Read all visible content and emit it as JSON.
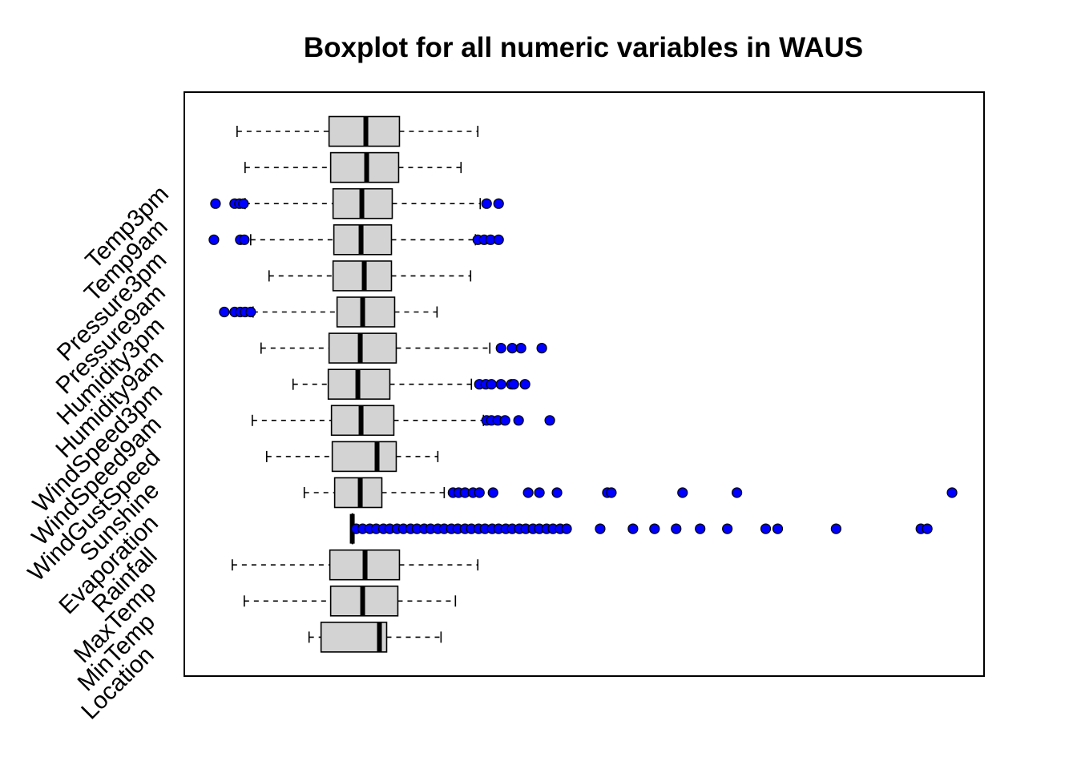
{
  "chart_data": {
    "type": "boxplot",
    "orientation": "horizontal",
    "title": "Boxplot for all numeric variables in WAUS",
    "xlabel": "",
    "ylabel": "",
    "xlim": [
      0,
      100
    ],
    "x_axis_visible": false,
    "grid": false,
    "legend": "none",
    "box_color": "#d3d3d3",
    "outlier_color": "#0000ff",
    "categories_top_to_bottom": [
      "Temp3pm",
      "Temp9am",
      "Pressure3pm",
      "Pressure9am",
      "Humidity3pm",
      "Humidity9am",
      "WindSpeed3pm",
      "WindSpeed9am",
      "WindGustSpeed",
      "Sunshine",
      "Evaporation",
      "Rainfall",
      "MaxTemp",
      "MinTemp",
      "Location"
    ],
    "boxes": [
      {
        "name": "Temp3pm",
        "whisker_low": 6.6,
        "q1": 18.1,
        "median": 22.7,
        "q3": 26.9,
        "whisker_high": 36.7,
        "outliers": []
      },
      {
        "name": "Temp9am",
        "whisker_low": 7.6,
        "q1": 18.3,
        "median": 22.8,
        "q3": 26.8,
        "whisker_high": 34.6,
        "outliers": []
      },
      {
        "name": "Pressure3pm",
        "whisker_low": 7.6,
        "q1": 18.6,
        "median": 22.2,
        "q3": 26.0,
        "whisker_high": 37.0,
        "outliers": [
          3.9,
          6.3,
          6.9,
          7.4,
          37.8,
          39.3
        ]
      },
      {
        "name": "Pressure9am",
        "whisker_low": 8.3,
        "q1": 18.7,
        "median": 22.1,
        "q3": 25.9,
        "whisker_high": 36.4,
        "outliers": [
          3.7,
          7.0,
          7.5,
          36.7,
          37.5,
          38.3,
          39.3
        ]
      },
      {
        "name": "Humidity3pm",
        "whisker_low": 10.6,
        "q1": 18.6,
        "median": 22.5,
        "q3": 25.9,
        "whisker_high": 35.8,
        "outliers": []
      },
      {
        "name": "Humidity9am",
        "whisker_low": 8.6,
        "q1": 19.1,
        "median": 22.3,
        "q3": 26.3,
        "whisker_high": 31.6,
        "outliers": [
          5.0,
          6.3,
          7.0,
          7.6,
          8.3
        ]
      },
      {
        "name": "WindSpeed3pm",
        "whisker_low": 9.6,
        "q1": 18.1,
        "median": 22.0,
        "q3": 26.5,
        "whisker_high": 38.2,
        "outliers": [
          39.6,
          41.0,
          42.1,
          44.7
        ]
      },
      {
        "name": "WindSpeed9am",
        "whisker_low": 13.6,
        "q1": 18.0,
        "median": 21.7,
        "q3": 25.7,
        "whisker_high": 35.9,
        "outliers": [
          36.9,
          37.7,
          38.4,
          39.6,
          40.9,
          41.2,
          42.6
        ]
      },
      {
        "name": "WindGustSpeed",
        "whisker_low": 8.5,
        "q1": 18.4,
        "median": 22.1,
        "q3": 26.2,
        "whisker_high": 37.4,
        "outliers": [
          37.8,
          38.4,
          39.2,
          40.1,
          41.8,
          45.7
        ]
      },
      {
        "name": "Sunshine",
        "whisker_low": 10.3,
        "q1": 18.5,
        "median": 24.1,
        "q3": 26.5,
        "whisker_high": 31.7,
        "outliers": []
      },
      {
        "name": "Evaporation",
        "whisker_low": 15.0,
        "q1": 18.8,
        "median": 22.0,
        "q3": 24.7,
        "whisker_high": 32.5,
        "outliers": [
          33.6,
          34.3,
          35.1,
          36.1,
          36.9,
          38.6,
          43.0,
          44.4,
          46.6,
          52.9,
          53.4,
          62.3,
          69.1,
          96.0
        ]
      },
      {
        "name": "Rainfall",
        "whisker_low": 21.0,
        "q1": 21.0,
        "median": 21.0,
        "q3": 21.0,
        "whisker_high": 21.0,
        "outliers": [
          21.5,
          22.3,
          23.2,
          24.0,
          24.9,
          25.7,
          26.6,
          27.4,
          28.3,
          29.1,
          30.0,
          30.8,
          31.7,
          32.5,
          33.4,
          34.2,
          35.1,
          35.9,
          36.8,
          37.6,
          38.5,
          39.3,
          40.2,
          41.0,
          41.9,
          42.7,
          43.6,
          44.4,
          45.3,
          46.1,
          47.0,
          47.8,
          52.0,
          56.1,
          58.8,
          61.5,
          64.5,
          67.9,
          72.7,
          74.2,
          81.5,
          92.1,
          92.9
        ]
      },
      {
        "name": "MaxTemp",
        "whisker_low": 6.0,
        "q1": 18.2,
        "median": 22.6,
        "q3": 26.9,
        "whisker_high": 36.7,
        "outliers": []
      },
      {
        "name": "MinTemp",
        "whisker_low": 7.5,
        "q1": 18.3,
        "median": 22.3,
        "q3": 26.7,
        "whisker_high": 33.9,
        "outliers": []
      },
      {
        "name": "Location",
        "whisker_low": 15.6,
        "q1": 17.1,
        "median": 24.4,
        "q3": 25.3,
        "whisker_high": 32.1,
        "outliers": []
      }
    ]
  }
}
